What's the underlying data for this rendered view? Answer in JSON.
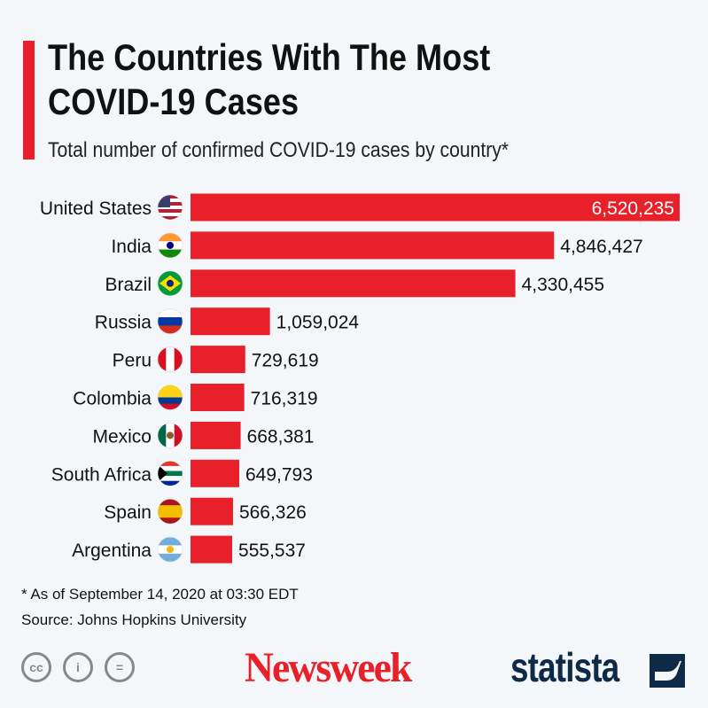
{
  "header": {
    "title_line1": "The Countries With The Most",
    "title_line2": "COVID-19 Cases",
    "subtitle": "Total number of confirmed COVID-19 cases by country*"
  },
  "chart_data": {
    "type": "bar",
    "orientation": "horizontal",
    "title": "The Countries With The Most COVID-19 Cases",
    "subtitle": "Total number of confirmed COVID-19 cases by country*",
    "categories": [
      "United States",
      "India",
      "Brazil",
      "Russia",
      "Peru",
      "Colombia",
      "Mexico",
      "South Africa",
      "Spain",
      "Argentina"
    ],
    "values": [
      6520235,
      4846427,
      4330455,
      1059024,
      729619,
      716319,
      668381,
      649793,
      566326,
      555537
    ],
    "labels": [
      "6,520,235",
      "4,846,427",
      "4,330,455",
      "1,059,024",
      "729,619",
      "716,319",
      "668,381",
      "649,793",
      "566,326",
      "555,537"
    ],
    "flags": [
      "us-flag-icon",
      "india-flag-icon",
      "brazil-flag-icon",
      "russia-flag-icon",
      "peru-flag-icon",
      "colombia-flag-icon",
      "mexico-flag-icon",
      "south-africa-flag-icon",
      "spain-flag-icon",
      "argentina-flag-icon"
    ],
    "xlim": [
      0,
      6520235
    ],
    "bar_color": "#e8202a",
    "grid": false
  },
  "footer": {
    "note": "* As of September 14, 2020 at 03:30 EDT",
    "source": "Source: Johns Hopkins University",
    "newsweek": "Newsweek",
    "statista": "statista"
  }
}
